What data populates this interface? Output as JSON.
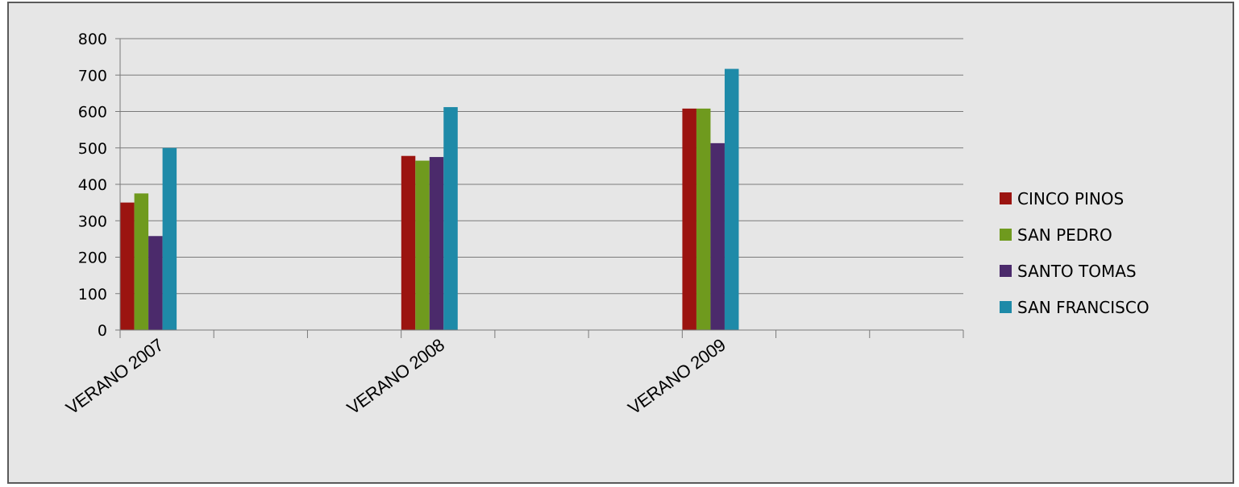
{
  "chart_data": {
    "type": "bar",
    "title": "",
    "xlabel": "",
    "ylabel": "",
    "categories": [
      "VERANO 2007",
      "",
      "",
      "VERANO 2008",
      "",
      "",
      "VERANO 2009",
      "",
      ""
    ],
    "series": [
      {
        "name": "CINCO PINOS",
        "color": "#9b1410",
        "values": [
          350,
          null,
          null,
          478,
          null,
          null,
          608,
          null,
          null
        ]
      },
      {
        "name": "SAN PEDRO",
        "color": "#6f9a1e",
        "values": [
          375,
          null,
          null,
          465,
          null,
          null,
          608,
          null,
          null
        ]
      },
      {
        "name": "SANTO TOMAS",
        "color": "#4b2a6b",
        "values": [
          258,
          null,
          null,
          475,
          null,
          null,
          513,
          null,
          null
        ]
      },
      {
        "name": "SAN FRANCISCO",
        "color": "#1e8aa8",
        "values": [
          500,
          null,
          null,
          612,
          null,
          null,
          717,
          null,
          null
        ]
      }
    ],
    "ylim": [
      0,
      800
    ],
    "yticks": [
      0,
      100,
      200,
      300,
      400,
      500,
      600,
      700,
      800
    ],
    "grid": true,
    "legend_position": "right"
  }
}
